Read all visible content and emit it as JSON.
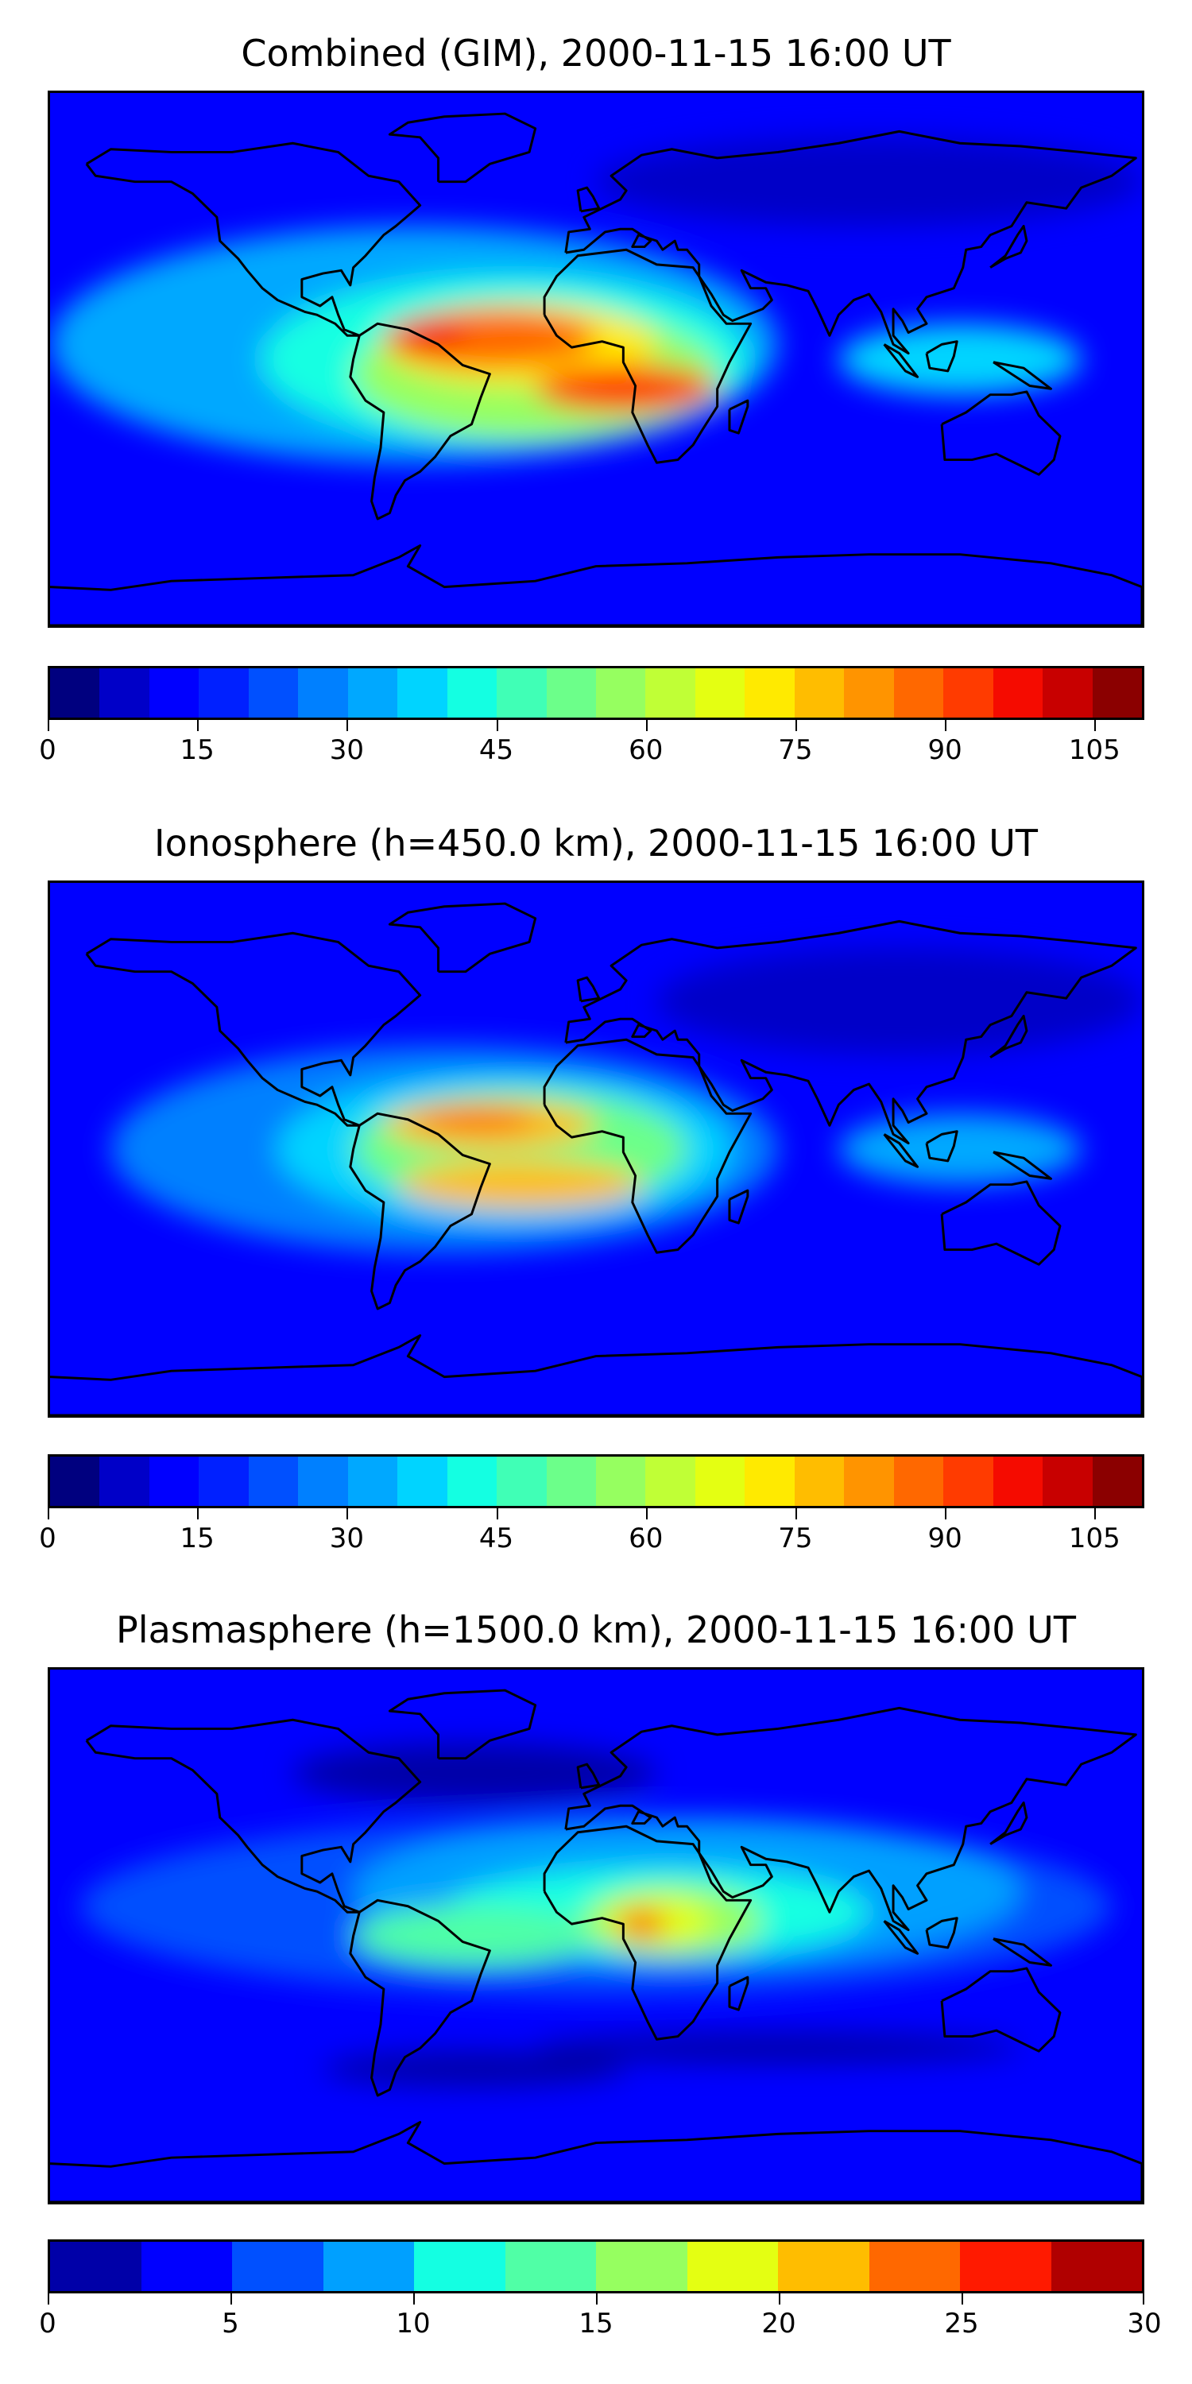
{
  "panels": [
    {
      "title": "Combined (GIM), 2000-11-15 16:00 UT",
      "colorbar": {
        "min": 0,
        "max": 110,
        "step": 5,
        "ticks": [
          "0",
          "15",
          "30",
          "45",
          "60",
          "75",
          "90",
          "105"
        ],
        "tick_values": [
          0,
          15,
          30,
          45,
          60,
          75,
          90,
          105
        ],
        "colors": [
          "#00007f",
          "#0000c8",
          "#0000ff",
          "#0020ff",
          "#0050ff",
          "#0080ff",
          "#00a8ff",
          "#00d4ff",
          "#14ffe2",
          "#40ffb6",
          "#6cff8a",
          "#96ff60",
          "#c0ff36",
          "#e4ff12",
          "#ffea00",
          "#ffbd00",
          "#ff9400",
          "#ff6800",
          "#ff3b00",
          "#f50b00",
          "#c80000",
          "#8b0000"
        ]
      }
    },
    {
      "title": "Ionosphere  (h=450.0 km), 2000-11-15 16:00 UT",
      "colorbar": {
        "min": 0,
        "max": 110,
        "step": 5,
        "ticks": [
          "0",
          "15",
          "30",
          "45",
          "60",
          "75",
          "90",
          "105"
        ],
        "tick_values": [
          0,
          15,
          30,
          45,
          60,
          75,
          90,
          105
        ],
        "colors": [
          "#00007f",
          "#0000c8",
          "#0000ff",
          "#0020ff",
          "#0050ff",
          "#0080ff",
          "#00a8ff",
          "#00d4ff",
          "#14ffe2",
          "#40ffb6",
          "#6cff8a",
          "#96ff60",
          "#c0ff36",
          "#e4ff12",
          "#ffea00",
          "#ffbd00",
          "#ff9400",
          "#ff6800",
          "#ff3b00",
          "#f50b00",
          "#c80000",
          "#8b0000"
        ]
      }
    },
    {
      "title": "Plasmasphere (h=1500.0 km), 2000-11-15 16:00 UT",
      "colorbar": {
        "min": 0,
        "max": 30,
        "step": 2.5,
        "ticks": [
          "0",
          "5",
          "10",
          "15",
          "20",
          "25",
          "30"
        ],
        "tick_values": [
          0,
          5,
          10,
          15,
          20,
          25,
          30
        ],
        "colors": [
          "#0000a8",
          "#0000ff",
          "#0050ff",
          "#00a0ff",
          "#14ffe2",
          "#50ffa6",
          "#96ff60",
          "#e4ff12",
          "#ffbd00",
          "#ff6800",
          "#ff1a00",
          "#b00000"
        ]
      }
    }
  ],
  "map_fields": [
    {
      "background": "#0000ff",
      "blobs": [
        {
          "lon": -60,
          "lat": 5,
          "rx": 120,
          "ry": 40,
          "color": "#00a8ff"
        },
        {
          "lon": -30,
          "lat": 0,
          "rx": 80,
          "ry": 28,
          "color": "#14ffe2"
        },
        {
          "lon": -20,
          "lat": -5,
          "rx": 60,
          "ry": 22,
          "color": "#96ff60"
        },
        {
          "lon": -25,
          "lat": 5,
          "rx": 45,
          "ry": 14,
          "color": "#ffea00"
        },
        {
          "lon": -35,
          "lat": 7,
          "rx": 35,
          "ry": 10,
          "color": "#ff6800"
        },
        {
          "lon": -55,
          "lat": 8,
          "rx": 12,
          "ry": 5,
          "color": "#f50b00"
        },
        {
          "lon": 10,
          "lat": -10,
          "rx": 30,
          "ry": 8,
          "color": "#ff3b00"
        },
        {
          "lon": 120,
          "lat": 0,
          "rx": 40,
          "ry": 12,
          "color": "#00d4ff"
        },
        {
          "lon": 90,
          "lat": 60,
          "rx": 90,
          "ry": 15,
          "color": "#0000c8"
        }
      ]
    },
    {
      "background": "#0000ff",
      "blobs": [
        {
          "lon": -50,
          "lat": 0,
          "rx": 110,
          "ry": 35,
          "color": "#0080ff"
        },
        {
          "lon": -30,
          "lat": 0,
          "rx": 75,
          "ry": 25,
          "color": "#00d4ff"
        },
        {
          "lon": -25,
          "lat": 0,
          "rx": 55,
          "ry": 20,
          "color": "#6cff8a"
        },
        {
          "lon": -35,
          "lat": 8,
          "rx": 35,
          "ry": 8,
          "color": "#ffbd00"
        },
        {
          "lon": -25,
          "lat": -12,
          "rx": 40,
          "ry": 8,
          "color": "#ffbd00"
        },
        {
          "lon": -40,
          "lat": 10,
          "rx": 20,
          "ry": 4,
          "color": "#ff6800"
        },
        {
          "lon": 120,
          "lat": 0,
          "rx": 40,
          "ry": 12,
          "color": "#00a8ff"
        },
        {
          "lon": 100,
          "lat": 50,
          "rx": 80,
          "ry": 18,
          "color": "#0000c8"
        }
      ]
    },
    {
      "background": "#0000ff",
      "blobs": [
        {
          "lon": 0,
          "lat": 10,
          "rx": 170,
          "ry": 30,
          "color": "#0050ff"
        },
        {
          "lon": 30,
          "lat": 15,
          "rx": 110,
          "ry": 25,
          "color": "#00a0ff"
        },
        {
          "lon": 20,
          "lat": 8,
          "rx": 70,
          "ry": 15,
          "color": "#14ffe2"
        },
        {
          "lon": -40,
          "lat": 0,
          "rx": 40,
          "ry": 10,
          "color": "#50ffa6"
        },
        {
          "lon": 25,
          "lat": 5,
          "rx": 30,
          "ry": 12,
          "color": "#96ff60"
        },
        {
          "lon": 20,
          "lat": 5,
          "rx": 18,
          "ry": 8,
          "color": "#e4ff12"
        },
        {
          "lon": 15,
          "lat": 4,
          "rx": 8,
          "ry": 5,
          "color": "#ff6800"
        },
        {
          "lon": -40,
          "lat": 55,
          "rx": 60,
          "ry": 10,
          "color": "#0000a8"
        },
        {
          "lon": -40,
          "lat": -45,
          "rx": 50,
          "ry": 6,
          "color": "#0000a8"
        },
        {
          "lon": 60,
          "lat": -38,
          "rx": 80,
          "ry": 5,
          "color": "#0000a8"
        }
      ]
    }
  ],
  "coastline_color": "#000000"
}
